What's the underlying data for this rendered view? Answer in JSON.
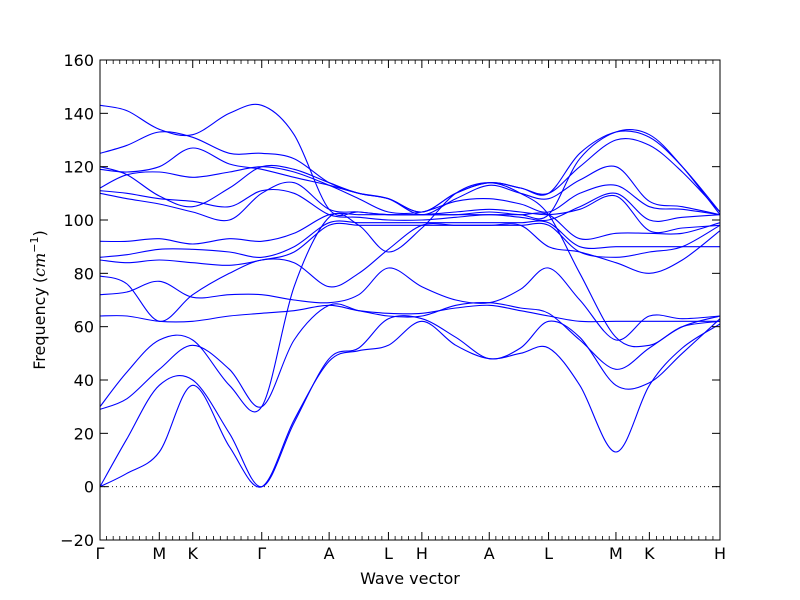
{
  "chart_data": {
    "type": "line",
    "title": "",
    "xlabel": "Wave vector",
    "ylabel": "Frequency (cm⁻¹)",
    "ylabel_main": "Frequency",
    "ylabel_open": "(",
    "ylabel_unit": "cm",
    "ylabel_exp": "−1",
    "ylabel_close": ")",
    "ylim": [
      -20,
      160
    ],
    "yticks": [
      -20,
      0,
      20,
      40,
      60,
      80,
      100,
      120,
      140,
      160
    ],
    "xlim": [
      0,
      11.5
    ],
    "high_symmetry_points": [
      {
        "label": "Γ",
        "x": 0
      },
      {
        "label": "M",
        "x": 1.1
      },
      {
        "label": "K",
        "x": 1.72
      },
      {
        "label": "Γ",
        "x": 3.0
      },
      {
        "label": "A",
        "x": 4.25
      },
      {
        "label": "L",
        "x": 5.35
      },
      {
        "label": "H",
        "x": 5.97
      },
      {
        "label": "A",
        "x": 7.22
      },
      {
        "label": "L",
        "x": 8.32
      },
      {
        "label": "M",
        "x": 9.57
      },
      {
        "label": "K",
        "x": 10.19
      },
      {
        "label": "H",
        "x": 11.5
      }
    ],
    "zero_line": true,
    "grid": false,
    "legend": "none",
    "line_color": "#0000ff",
    "series": [
      {
        "x": [
          0,
          0.5,
          1.1,
          1.72,
          2.4,
          3.0,
          3.6,
          4.25,
          4.8,
          5.35,
          5.97,
          6.6,
          7.22,
          7.8,
          8.32,
          8.9,
          9.57,
          10.19,
          10.8,
          11.5
        ],
        "y": [
          0,
          5,
          13,
          38,
          15,
          0,
          25,
          47,
          51,
          53,
          62,
          53,
          48,
          50,
          52,
          38,
          13,
          38,
          52,
          61
        ]
      },
      {
        "x": [
          0,
          0.5,
          1.1,
          1.72,
          2.4,
          3.0,
          3.6,
          4.25,
          4.8,
          5.35,
          5.97,
          6.6,
          7.22,
          7.8,
          8.32,
          8.9,
          9.57,
          10.19,
          10.8,
          11.5
        ],
        "y": [
          0,
          18,
          38,
          40,
          20,
          0,
          24,
          48,
          52,
          63,
          63,
          56,
          48,
          52,
          62,
          56,
          38,
          39,
          50,
          63
        ]
      },
      {
        "x": [
          0,
          0.5,
          1.1,
          1.72,
          2.4,
          3.0,
          3.6,
          4.25,
          4.8,
          5.35,
          5.97,
          6.6,
          7.22,
          7.8,
          8.32,
          8.9,
          9.57,
          10.19,
          10.8,
          11.5
        ],
        "y": [
          29,
          33,
          44,
          53,
          44,
          30,
          55,
          68,
          66,
          64,
          64,
          68,
          69,
          67,
          65,
          55,
          44,
          52,
          60,
          64
        ]
      },
      {
        "x": [
          0,
          0.5,
          1.1,
          1.72,
          2.4,
          3.0,
          3.6,
          4.25,
          4.8,
          5.35,
          5.97,
          6.6,
          7.22,
          7.8,
          8.32,
          8.9,
          9.57,
          10.19,
          10.8,
          11.5
        ],
        "y": [
          30,
          43,
          55,
          55,
          38,
          30,
          75,
          101,
          98,
          88,
          97,
          110,
          114,
          110,
          102,
          80,
          56,
          53,
          60,
          62
        ]
      },
      {
        "x": [
          0,
          0.5,
          1.1,
          1.72,
          2.4,
          3.0,
          3.6,
          4.25,
          4.8,
          5.35,
          5.97,
          6.6,
          7.22,
          7.8,
          8.32,
          8.9,
          9.57,
          10.19,
          10.8,
          11.5
        ],
        "y": [
          64,
          64,
          62,
          62,
          64,
          65,
          66,
          68,
          66,
          65,
          65,
          67,
          68,
          66,
          64,
          62,
          62,
          62,
          62,
          62
        ]
      },
      {
        "x": [
          0,
          0.5,
          1.1,
          1.72,
          2.4,
          3.0,
          3.6,
          4.25,
          4.8,
          5.35,
          5.97,
          6.6,
          7.22,
          7.8,
          8.32,
          8.9,
          9.57,
          10.19,
          10.8,
          11.5
        ],
        "y": [
          72,
          73,
          77,
          71,
          72,
          72,
          70,
          69,
          72,
          82,
          75,
          70,
          69,
          74,
          82,
          70,
          55,
          64,
          63,
          64
        ]
      },
      {
        "x": [
          0,
          0.5,
          1.1,
          1.72,
          2.4,
          3.0,
          3.6,
          4.25,
          4.8,
          5.35,
          5.97,
          6.6,
          7.22,
          7.8,
          8.32,
          8.9,
          9.57,
          10.19,
          10.8,
          11.5
        ],
        "y": [
          79,
          76,
          62,
          72,
          80,
          85,
          84,
          75,
          80,
          89,
          98,
          98,
          98,
          98,
          90,
          88,
          84,
          80,
          85,
          96
        ]
      },
      {
        "x": [
          0,
          0.5,
          1.1,
          1.72,
          2.4,
          3.0,
          3.6,
          4.25,
          4.8,
          5.35,
          5.97,
          6.6,
          7.22,
          7.8,
          8.32,
          8.9,
          9.57,
          10.19,
          10.8,
          11.5
        ],
        "y": [
          85,
          84,
          85,
          84,
          83,
          85,
          88,
          98,
          98,
          98,
          98,
          98,
          98,
          98,
          98,
          88,
          86,
          88,
          90,
          98
        ]
      },
      {
        "x": [
          0,
          0.5,
          1.1,
          1.72,
          2.4,
          3.0,
          3.6,
          4.25,
          4.8,
          5.35,
          5.97,
          6.6,
          7.22,
          7.8,
          8.32,
          8.9,
          9.57,
          10.19,
          10.8,
          11.5
        ],
        "y": [
          86,
          87,
          89,
          89,
          88,
          86,
          90,
          99,
          99,
          99,
          99,
          99,
          99,
          99,
          99,
          90,
          90,
          90,
          90,
          90
        ]
      },
      {
        "x": [
          0,
          0.5,
          1.1,
          1.72,
          2.4,
          3.0,
          3.6,
          4.25,
          4.8,
          5.35,
          5.97,
          6.6,
          7.22,
          7.8,
          8.32,
          8.9,
          9.57,
          10.19,
          10.8,
          11.5
        ],
        "y": [
          92,
          92,
          93,
          91,
          93,
          92,
          95,
          102,
          102,
          102,
          102,
          102,
          102,
          102,
          102,
          93,
          95,
          95,
          95,
          99
        ]
      },
      {
        "x": [
          0,
          0.5,
          1.1,
          1.72,
          2.4,
          3.0,
          3.6,
          4.25,
          4.8,
          5.35,
          5.97,
          6.6,
          7.22,
          7.8,
          8.32,
          8.9,
          9.57,
          10.19,
          10.8,
          11.5
        ],
        "y": [
          110,
          108,
          106,
          103,
          100,
          110,
          114,
          104,
          103,
          102,
          102,
          103,
          104,
          103,
          102,
          104,
          109,
          96,
          97,
          98
        ]
      },
      {
        "x": [
          0,
          0.5,
          1.1,
          1.72,
          2.4,
          3.0,
          3.6,
          4.25,
          4.8,
          5.35,
          5.97,
          6.6,
          7.22,
          7.8,
          8.32,
          8.9,
          9.57,
          10.19,
          10.8,
          11.5
        ],
        "y": [
          111,
          110,
          108,
          107,
          105,
          111,
          110,
          102,
          101,
          100,
          100,
          101,
          102,
          101,
          100,
          105,
          110,
          100,
          101,
          102
        ]
      },
      {
        "x": [
          0,
          0.5,
          1.1,
          1.72,
          2.4,
          3.0,
          3.6,
          4.25,
          4.8,
          5.35,
          5.97,
          6.6,
          7.22,
          7.8,
          8.32,
          8.9,
          9.57,
          10.19,
          10.8,
          11.5
        ],
        "y": [
          112,
          117,
          118,
          116,
          118,
          120,
          118,
          113,
          108,
          103,
          103,
          107,
          108,
          106,
          103,
          110,
          113,
          105,
          104,
          102
        ]
      },
      {
        "x": [
          0,
          0.5,
          1.1,
          1.72,
          2.4,
          3.0,
          3.6,
          4.25,
          4.8,
          5.35,
          5.97,
          6.6,
          7.22,
          7.8,
          8.32,
          8.9,
          9.57,
          10.19,
          10.8,
          11.5
        ],
        "y": [
          119,
          118,
          120,
          127,
          121,
          119,
          116,
          113,
          110,
          108,
          102,
          108,
          113,
          110,
          108,
          115,
          120,
          107,
          105,
          102
        ]
      },
      {
        "x": [
          0,
          0.5,
          1.1,
          1.72,
          2.4,
          3.0,
          3.6,
          4.25,
          4.8,
          5.35,
          5.97,
          6.6,
          7.22,
          7.8,
          8.32,
          8.9,
          9.57,
          10.19,
          10.8,
          11.5
        ],
        "y": [
          120,
          117,
          109,
          105,
          112,
          120,
          119,
          114,
          110,
          108,
          103,
          110,
          114,
          112,
          110,
          120,
          130,
          128,
          118,
          103
        ]
      },
      {
        "x": [
          0,
          0.5,
          1.1,
          1.72,
          2.4,
          3.0,
          3.6,
          4.25,
          4.8,
          5.35,
          5.97,
          6.6,
          7.22,
          7.8,
          8.32,
          8.9,
          9.57,
          10.19,
          10.8,
          11.5
        ],
        "y": [
          125,
          128,
          133,
          131,
          125,
          125,
          123,
          114,
          110,
          108,
          103,
          110,
          114,
          112,
          110,
          125,
          133,
          131,
          120,
          103
        ]
      },
      {
        "x": [
          0,
          0.5,
          1.1,
          1.72,
          2.4,
          3.0,
          3.6,
          4.25,
          4.8,
          5.35,
          5.97,
          6.6,
          7.22,
          7.8,
          8.32,
          8.9,
          9.57,
          10.19,
          10.8,
          11.5
        ],
        "y": [
          143,
          141,
          134,
          132,
          140,
          143,
          132,
          104,
          103,
          102,
          102,
          102,
          103,
          102,
          102,
          123,
          133,
          132,
          120,
          102
        ]
      }
    ]
  }
}
